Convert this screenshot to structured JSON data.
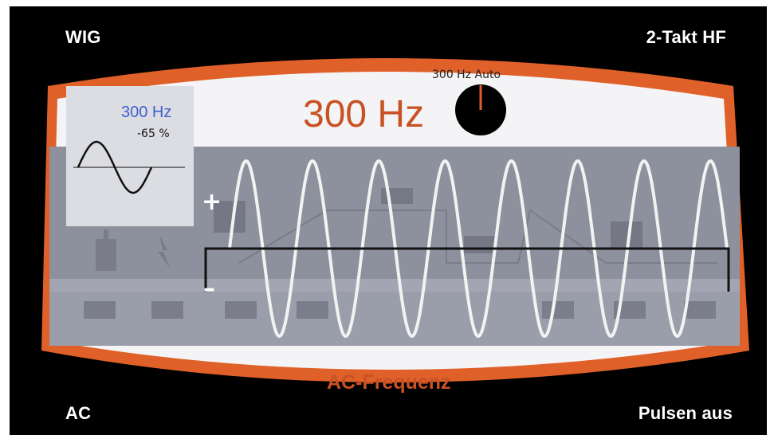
{
  "modes": {
    "top_left": "WIG",
    "top_right": "2-Takt HF",
    "bottom_left": "AC",
    "bottom_right": "Pulsen aus"
  },
  "frequency": {
    "value_label": "300 Hz",
    "knob_label": "300 Hz  Auto"
  },
  "preview": {
    "frequency": "300 Hz",
    "balance": "-65 %",
    "waveform_icon": "sine-wave-icon"
  },
  "parameter": {
    "name": "AC-Frequenz"
  },
  "polarity": {
    "positive": "+",
    "negative": "–"
  },
  "wave": {
    "cycles": 7.5
  },
  "colors": {
    "background": "#000000",
    "accent": "#e0602a",
    "accent_text": "#c85224",
    "panel": "#f4f4f6",
    "band": "#8d909d",
    "preview_text": "#3e5fcf",
    "wave": "#f2f2f2"
  }
}
